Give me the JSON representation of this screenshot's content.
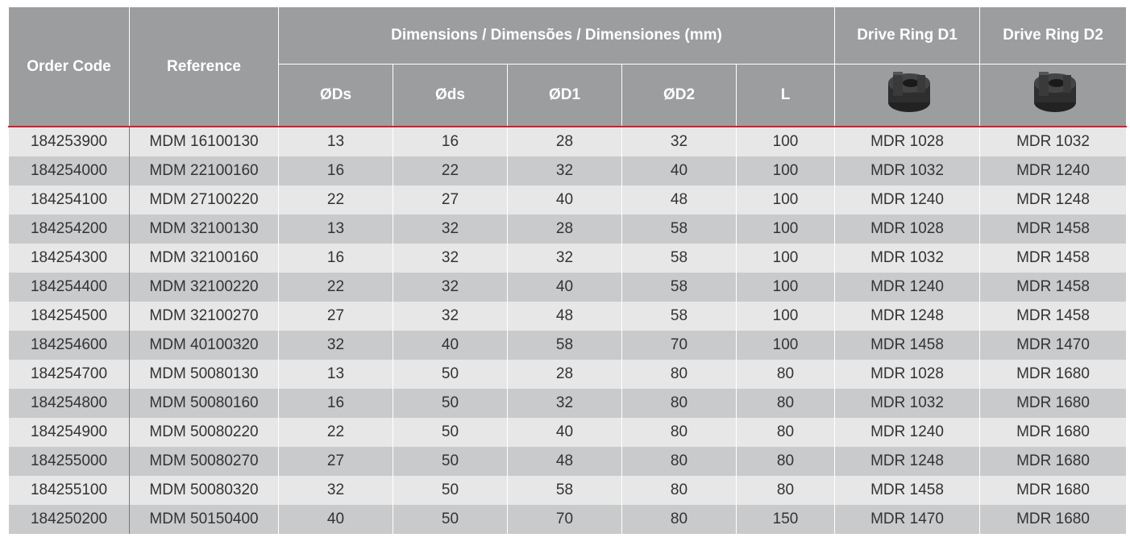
{
  "table": {
    "headers": {
      "order_code": "Order Code",
      "reference": "Reference",
      "dimensions": "Dimensions / Dimensões / Dimensiones (mm)",
      "drive_ring_d1": "Drive Ring D1",
      "drive_ring_d2": "Drive Ring D2",
      "sub": [
        "ØDs",
        "Øds",
        "ØD1",
        "ØD2",
        "L"
      ]
    },
    "rows": [
      [
        "184253900",
        "MDM 16100130",
        "13",
        "16",
        "28",
        "32",
        "100",
        "MDR 1028",
        "MDR 1032"
      ],
      [
        "184254000",
        "MDM 22100160",
        "16",
        "22",
        "32",
        "40",
        "100",
        "MDR 1032",
        "MDR 1240"
      ],
      [
        "184254100",
        "MDM 27100220",
        "22",
        "27",
        "40",
        "48",
        "100",
        "MDR 1240",
        "MDR 1248"
      ],
      [
        "184254200",
        "MDM 32100130",
        "13",
        "32",
        "28",
        "58",
        "100",
        "MDR 1028",
        "MDR 1458"
      ],
      [
        "184254300",
        "MDM 32100160",
        "16",
        "32",
        "32",
        "58",
        "100",
        "MDR 1032",
        "MDR 1458"
      ],
      [
        "184254400",
        "MDM 32100220",
        "22",
        "32",
        "40",
        "58",
        "100",
        "MDR 1240",
        "MDR 1458"
      ],
      [
        "184254500",
        "MDM 32100270",
        "27",
        "32",
        "48",
        "58",
        "100",
        "MDR 1248",
        "MDR 1458"
      ],
      [
        "184254600",
        "MDM 40100320",
        "32",
        "40",
        "58",
        "70",
        "100",
        "MDR 1458",
        "MDR 1470"
      ],
      [
        "184254700",
        "MDM 50080130",
        "13",
        "50",
        "28",
        "80",
        "80",
        "MDR 1028",
        "MDR 1680"
      ],
      [
        "184254800",
        "MDM 50080160",
        "16",
        "50",
        "32",
        "80",
        "80",
        "MDR 1032",
        "MDR 1680"
      ],
      [
        "184254900",
        "MDM 50080220",
        "22",
        "50",
        "40",
        "80",
        "80",
        "MDR 1240",
        "MDR 1680"
      ],
      [
        "184255000",
        "MDM 50080270",
        "27",
        "50",
        "48",
        "80",
        "80",
        "MDR 1248",
        "MDR 1680"
      ],
      [
        "184255100",
        "MDM 50080320",
        "32",
        "50",
        "58",
        "80",
        "80",
        "MDR 1458",
        "MDR 1680"
      ],
      [
        "184250200",
        "MDM 50150400",
        "40",
        "50",
        "70",
        "80",
        "150",
        "MDR 1470",
        "MDR 1680"
      ]
    ]
  }
}
